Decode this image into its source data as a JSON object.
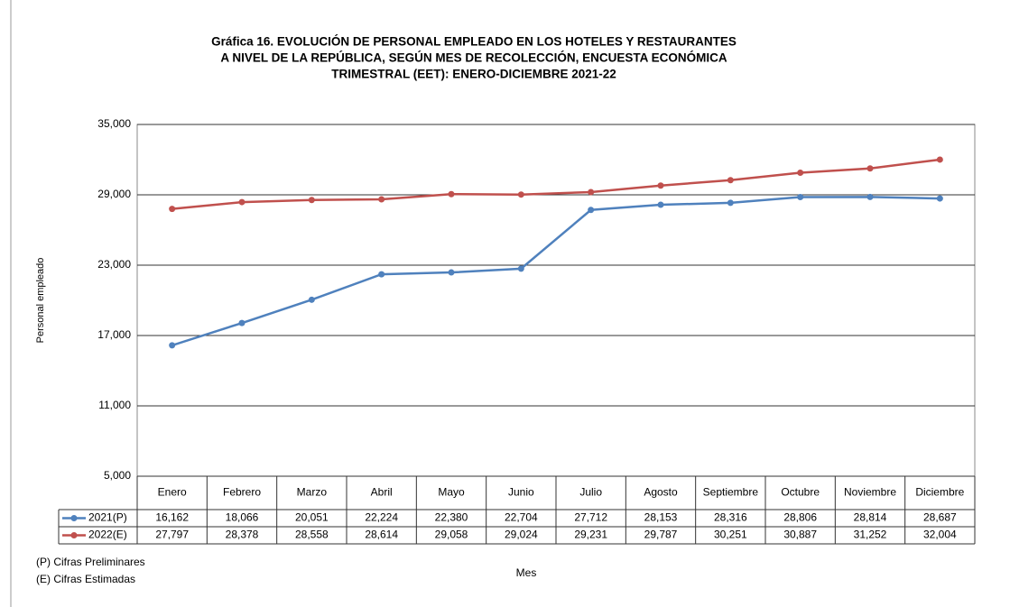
{
  "chart_data": {
    "type": "line",
    "title": [
      "Gráfica 16.  EVOLUCIÓN DE PERSONAL EMPLEADO EN LOS HOTELES Y RESTAURANTES",
      "A NIVEL DE LA REPÚBLICA, SEGÚN MES DE RECOLECCIÓN, ENCUESTA ECONÓMICA",
      "TRIMESTRAL (EET): ENERO-DICIEMBRE 2021-22"
    ],
    "x_label": "Mes",
    "y_label": "Personal empleado",
    "categories": [
      "Enero",
      "Febrero",
      "Marzo",
      "Abril",
      "Mayo",
      "Junio",
      "Julio",
      "Agosto",
      "Septiembre",
      "Octubre",
      "Noviembre",
      "Diciembre"
    ],
    "series": [
      {
        "name": "2021(P)",
        "color": "#4f81bd",
        "values": [
          16162,
          18066,
          20051,
          22224,
          22380,
          22704,
          27712,
          28153,
          28316,
          28806,
          28814,
          28687
        ],
        "value_labels": [
          "16,162",
          "18,066",
          "20,051",
          "22,224",
          "22,380",
          "22,704",
          "27,712",
          "28,153",
          "28,316",
          "28,806",
          "28,814",
          "28,687"
        ]
      },
      {
        "name": "2022(E)",
        "color": "#c0504d",
        "values": [
          27797,
          28378,
          28558,
          28614,
          29058,
          29024,
          29231,
          29787,
          30251,
          30887,
          31252,
          32004
        ],
        "value_labels": [
          "27,797",
          "28,378",
          "28,558",
          "28,614",
          "29,058",
          "29,024",
          "29,231",
          "29,787",
          "30,251",
          "30,887",
          "31,252",
          "32,004"
        ]
      }
    ],
    "ylim": [
      5000,
      35000
    ],
    "yticks": [
      {
        "value": 5000,
        "label": "5,000"
      },
      {
        "value": 11000,
        "label": "11,000"
      },
      {
        "value": 17000,
        "label": "17,000"
      },
      {
        "value": 23000,
        "label": "23,000"
      },
      {
        "value": 29000,
        "label": "29,000"
      },
      {
        "value": 35000,
        "label": "35,000"
      }
    ],
    "grid": true,
    "notes": [
      "(P) Cifras Preliminares",
      "(E) Cifras Estimadas"
    ]
  }
}
